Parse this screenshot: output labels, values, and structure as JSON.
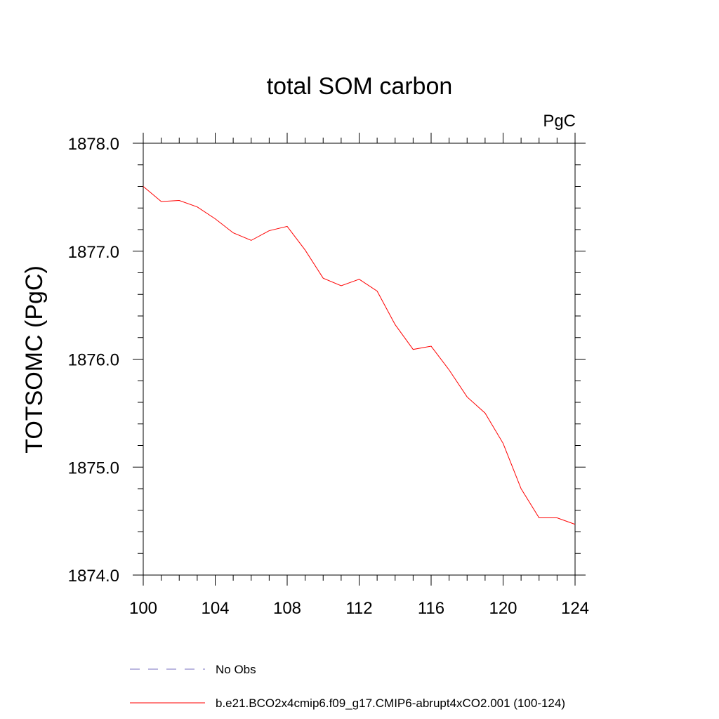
{
  "chart_data": {
    "type": "line",
    "title": "total SOM carbon",
    "units": "PgC",
    "xlabel": "",
    "ylabel": "TOTSOMC  (PgC)",
    "xlim": [
      100,
      124
    ],
    "ylim": [
      1874.0,
      1878.0
    ],
    "x_ticks": [
      100,
      104,
      108,
      112,
      116,
      120,
      124
    ],
    "x_tick_labels": [
      "100",
      "104",
      "108",
      "112",
      "116",
      "120",
      "124"
    ],
    "y_ticks": [
      1874.0,
      1875.0,
      1876.0,
      1877.0,
      1878.0
    ],
    "y_tick_labels": [
      "1874.0",
      "1875.0",
      "1876.0",
      "1877.0",
      "1878.0"
    ],
    "x_minor_step": 1,
    "y_minor_step": 0.2,
    "series": [
      {
        "name": "b.e21.BCO2x4cmip6.f09_g17.CMIP6-abrupt4xCO2.001 (100-124)",
        "color": "#ff0000",
        "x": [
          100,
          101,
          102,
          103,
          104,
          105,
          106,
          107,
          108,
          109,
          110,
          111,
          112,
          113,
          114,
          115,
          116,
          117,
          118,
          119,
          120,
          121,
          122,
          123,
          124
        ],
        "values": [
          1877.6,
          1877.46,
          1877.47,
          1877.41,
          1877.3,
          1877.17,
          1877.1,
          1877.19,
          1877.23,
          1877.01,
          1876.75,
          1876.68,
          1876.74,
          1876.63,
          1876.32,
          1876.09,
          1876.12,
          1875.9,
          1875.65,
          1875.5,
          1875.22,
          1874.8,
          1874.53,
          1874.53,
          1874.47
        ]
      }
    ],
    "legend": [
      {
        "label": "No Obs",
        "style": "dashed",
        "color": "#7a70c0"
      },
      {
        "label": "b.e21.BCO2x4cmip6.f09_g17.CMIP6-abrupt4xCO2.001 (100-124)",
        "style": "solid",
        "color": "#ff0000"
      }
    ]
  }
}
